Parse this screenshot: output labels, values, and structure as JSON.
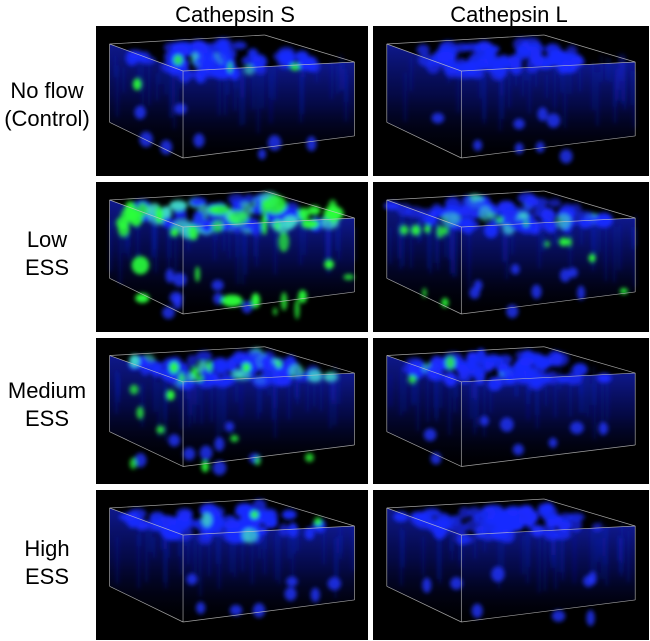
{
  "columns": [
    "Cathepsin S",
    "Cathepsin L"
  ],
  "rows": [
    {
      "label_line1": "No flow",
      "label_line2": "(Control)"
    },
    {
      "label_line1": "Low",
      "label_line2": "ESS"
    },
    {
      "label_line1": "Medium",
      "label_line2": "ESS"
    },
    {
      "label_line1": "High",
      "label_line2": "ESS"
    }
  ],
  "colors": {
    "nuclei": "#1a2cff",
    "cathepsin": "#2aff3a",
    "background": "#000000",
    "box": "#c8c8c8"
  },
  "panels": [
    {
      "row": 0,
      "col": 0,
      "green_level": 0.1
    },
    {
      "row": 0,
      "col": 1,
      "green_level": 0.0
    },
    {
      "row": 1,
      "col": 0,
      "green_level": 0.9
    },
    {
      "row": 1,
      "col": 1,
      "green_level": 0.35
    },
    {
      "row": 2,
      "col": 0,
      "green_level": 0.4
    },
    {
      "row": 2,
      "col": 1,
      "green_level": 0.05
    },
    {
      "row": 3,
      "col": 0,
      "green_level": 0.05
    },
    {
      "row": 3,
      "col": 1,
      "green_level": 0.0
    }
  ]
}
